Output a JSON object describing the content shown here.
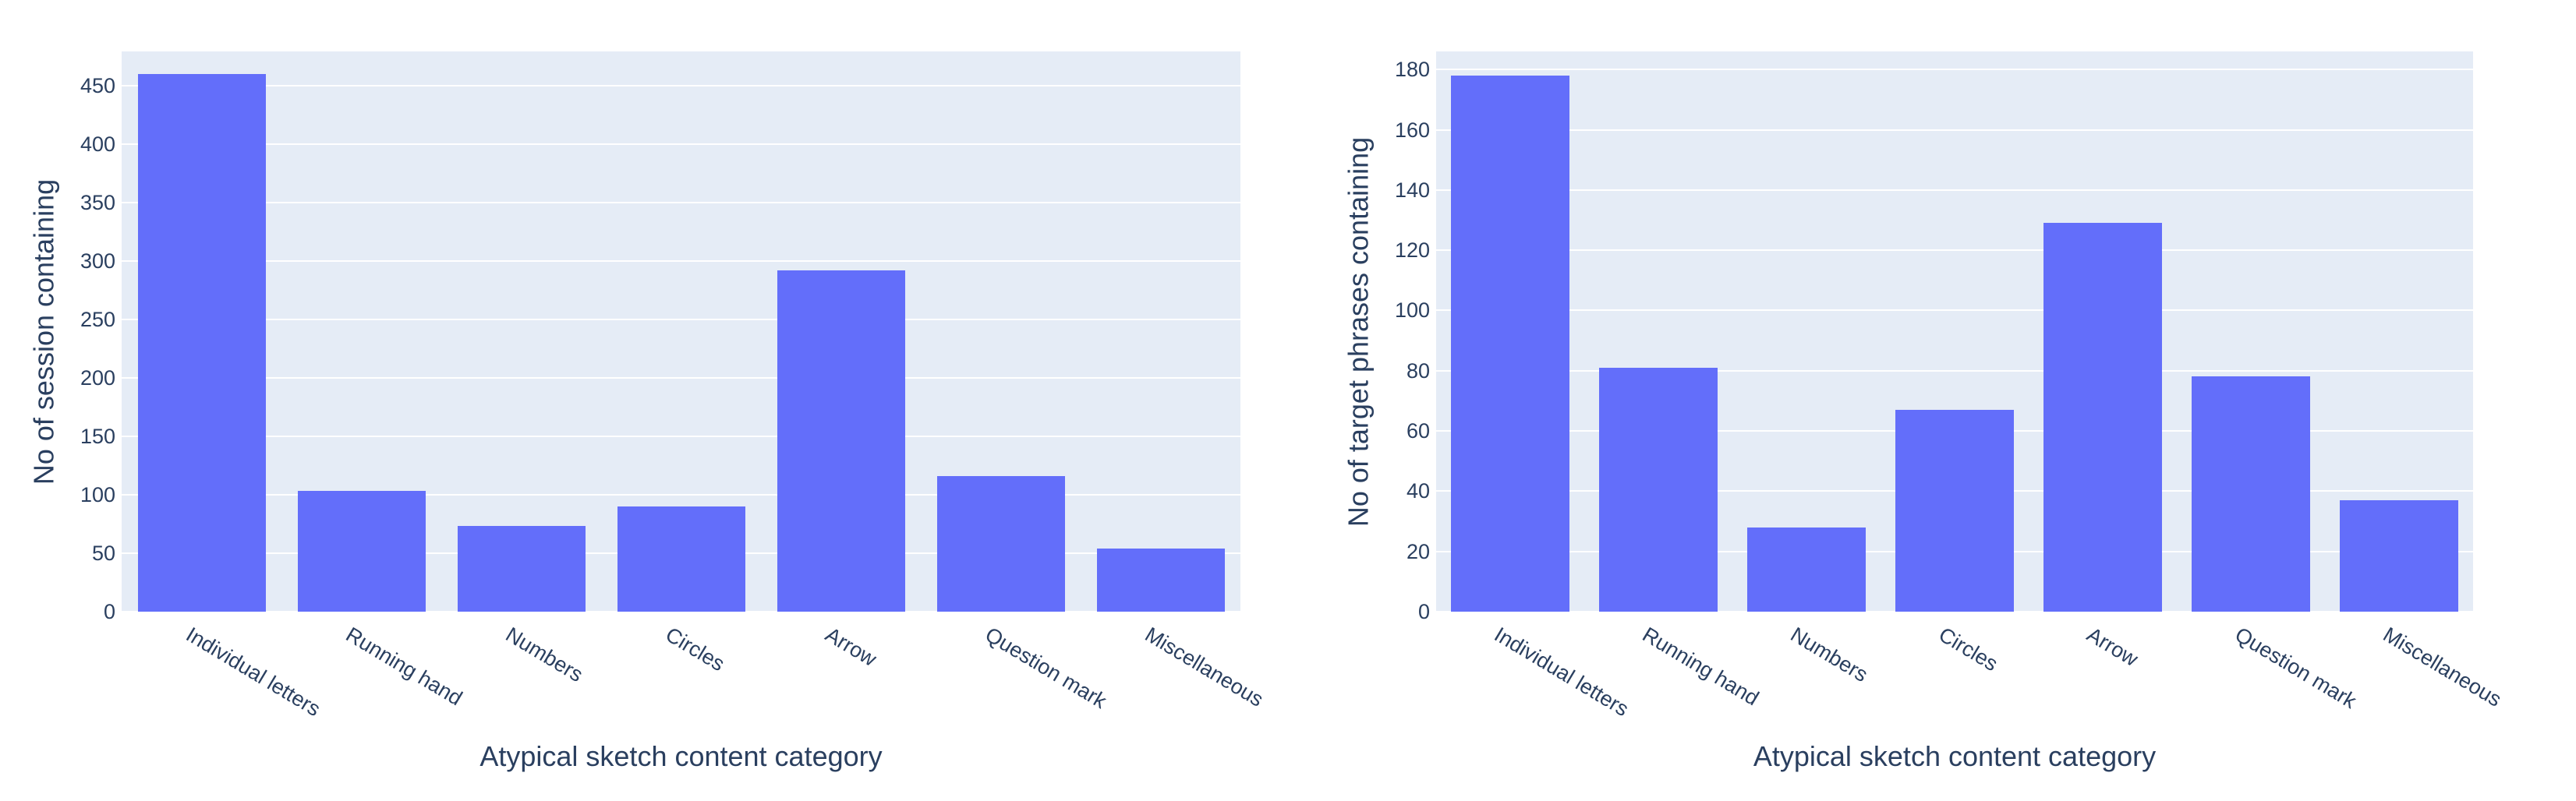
{
  "colors": {
    "bar": "#636efa",
    "plot_bg": "#e5ecf6",
    "grid": "#ffffff",
    "text": "#2a3f5f",
    "page_bg": "#ffffff"
  },
  "chart_data": [
    {
      "type": "bar",
      "title": "",
      "categories": [
        "Individual letters",
        "Running hand",
        "Numbers",
        "Circles",
        "Arrow",
        "Question mark",
        "Miscellaneous"
      ],
      "values": [
        460,
        103,
        73,
        90,
        292,
        116,
        54
      ],
      "xlabel": "Atypical sketch content category",
      "ylabel": "No of session containing",
      "yticks": [
        0,
        50,
        100,
        150,
        200,
        250,
        300,
        350,
        400,
        450
      ],
      "ylim": [
        0,
        479
      ],
      "grid": true,
      "legend": false
    },
    {
      "type": "bar",
      "title": "",
      "categories": [
        "Individual letters",
        "Running hand",
        "Numbers",
        "Circles",
        "Arrow",
        "Question mark",
        "Miscellaneous"
      ],
      "values": [
        178,
        81,
        28,
        67,
        129,
        78,
        37
      ],
      "xlabel": "Atypical sketch content category",
      "ylabel": "No of target phrases containing",
      "yticks": [
        0,
        20,
        40,
        60,
        80,
        100,
        120,
        140,
        160,
        180
      ],
      "ylim": [
        0,
        186
      ],
      "grid": true,
      "legend": false
    }
  ]
}
